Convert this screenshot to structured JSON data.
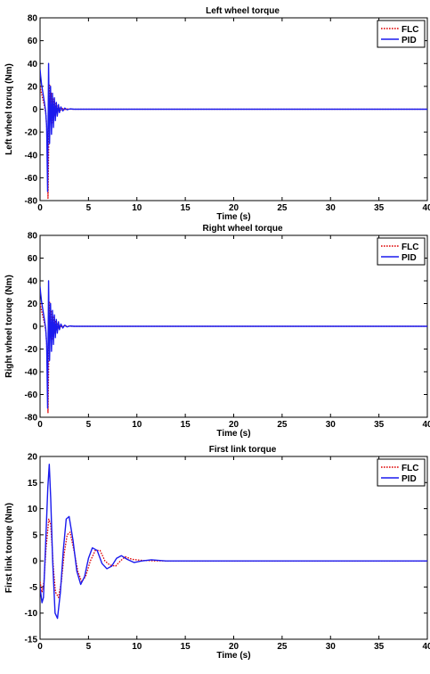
{
  "chart_data": [
    {
      "type": "line",
      "title": "Left wheel torque",
      "xlabel": "Time (s)",
      "ylabel": "Left wheel toruq (Nm)",
      "xlim": [
        0,
        40
      ],
      "ylim": [
        -80,
        80
      ],
      "xticks": [
        0,
        5,
        10,
        15,
        20,
        25,
        30,
        35,
        40
      ],
      "yticks": [
        -80,
        -60,
        -40,
        -20,
        0,
        20,
        40,
        60,
        80
      ],
      "xtick_labels": [
        "0",
        "5",
        "10",
        "15",
        "20",
        "25",
        "30",
        "35",
        "40"
      ],
      "ytick_labels": [
        "-80",
        "-60",
        "-40",
        "-20",
        "0",
        "20",
        "40",
        "60",
        "80"
      ],
      "grid": false,
      "legend_position": "top-right",
      "series": [
        {
          "name": "FLC",
          "color": "#dd0000",
          "style": "dotted",
          "x": [
            0,
            0.05,
            0.15,
            0.3,
            0.45,
            0.6,
            0.72,
            0.82,
            0.9,
            0.98,
            1.05,
            1.15,
            1.25,
            1.35,
            1.45,
            1.55,
            1.65,
            1.75,
            1.85,
            1.95,
            2.1,
            2.3,
            2.5,
            2.8,
            3.2,
            4,
            40
          ],
          "y": [
            20,
            18,
            14,
            8,
            3,
            -4,
            -22,
            -78,
            -30,
            22,
            -8,
            14,
            -12,
            9,
            -6,
            5,
            -3,
            3,
            -2,
            1.5,
            -1,
            0.6,
            -0.3,
            0.2,
            0,
            0,
            0
          ]
        },
        {
          "name": "PID",
          "color": "#1a1aee",
          "style": "solid",
          "x": [
            0,
            0.05,
            0.15,
            0.3,
            0.45,
            0.58,
            0.68,
            0.78,
            0.88,
            0.98,
            1.08,
            1.18,
            1.28,
            1.38,
            1.48,
            1.58,
            1.68,
            1.78,
            1.9,
            2.0,
            2.15,
            2.35,
            2.55,
            2.8,
            3.1,
            3.5,
            4,
            40
          ],
          "y": [
            35,
            30,
            22,
            14,
            6,
            -2,
            -15,
            -72,
            40,
            -30,
            20,
            -22,
            14,
            -16,
            10,
            -10,
            6,
            -6,
            4,
            -3,
            2,
            -1.5,
            1,
            -0.5,
            0.3,
            0,
            0,
            0
          ]
        }
      ]
    },
    {
      "type": "line",
      "title": "Right wheel torque",
      "xlabel": "Time (s)",
      "ylabel": "Right wheel toruqe (Nm)",
      "xlim": [
        0,
        40
      ],
      "ylim": [
        -80,
        80
      ],
      "xticks": [
        0,
        5,
        10,
        15,
        20,
        25,
        30,
        35,
        40
      ],
      "yticks": [
        -80,
        -60,
        -40,
        -20,
        0,
        20,
        40,
        60,
        80
      ],
      "xtick_labels": [
        "0",
        "5",
        "10",
        "15",
        "20",
        "25",
        "30",
        "35",
        "40"
      ],
      "ytick_labels": [
        "-80",
        "-60",
        "-40",
        "-20",
        "0",
        "20",
        "40",
        "60",
        "80"
      ],
      "grid": false,
      "legend_position": "top-right",
      "series": [
        {
          "name": "FLC",
          "color": "#dd0000",
          "style": "dotted",
          "x": [
            0,
            0.05,
            0.15,
            0.3,
            0.45,
            0.6,
            0.72,
            0.82,
            0.9,
            0.98,
            1.05,
            1.15,
            1.25,
            1.35,
            1.45,
            1.55,
            1.65,
            1.75,
            1.85,
            1.95,
            2.1,
            2.3,
            2.5,
            2.8,
            3.2,
            4,
            40
          ],
          "y": [
            20,
            18,
            14,
            8,
            3,
            -4,
            -22,
            -76,
            -30,
            22,
            -8,
            14,
            -12,
            9,
            -6,
            5,
            -3,
            3,
            -2,
            1.5,
            -1,
            0.6,
            -0.3,
            0.2,
            0,
            0,
            0
          ]
        },
        {
          "name": "PID",
          "color": "#1a1aee",
          "style": "solid",
          "x": [
            0,
            0.05,
            0.15,
            0.3,
            0.45,
            0.58,
            0.68,
            0.78,
            0.88,
            0.98,
            1.08,
            1.18,
            1.28,
            1.38,
            1.48,
            1.58,
            1.68,
            1.78,
            1.9,
            2.0,
            2.15,
            2.35,
            2.55,
            2.8,
            3.1,
            3.5,
            4,
            40
          ],
          "y": [
            35,
            30,
            22,
            14,
            6,
            -2,
            -15,
            -72,
            40,
            -30,
            20,
            -22,
            14,
            -16,
            10,
            -10,
            6,
            -6,
            4,
            -3,
            2,
            -1.5,
            1,
            -0.5,
            0.3,
            0,
            0,
            0
          ]
        }
      ]
    },
    {
      "type": "line",
      "title": "First link torque",
      "xlabel": "Time (s)",
      "ylabel": "First link toruqe (Nm)",
      "xlim": [
        0,
        40
      ],
      "ylim": [
        -15,
        20
      ],
      "xticks": [
        0,
        5,
        10,
        15,
        20,
        25,
        30,
        35,
        40
      ],
      "yticks": [
        -15,
        -10,
        -5,
        0,
        5,
        10,
        15,
        20
      ],
      "xtick_labels": [
        "0",
        "5",
        "10",
        "15",
        "20",
        "25",
        "30",
        "35",
        "40"
      ],
      "ytick_labels": [
        "-15",
        "-10",
        "-5",
        "0",
        "5",
        "10",
        "15",
        "20"
      ],
      "grid": false,
      "legend_position": "top-right",
      "series": [
        {
          "name": "FLC",
          "color": "#dd0000",
          "style": "dotted",
          "x": [
            0,
            0.2,
            0.4,
            0.6,
            0.9,
            1.1,
            1.4,
            1.6,
            1.9,
            2.2,
            2.5,
            2.8,
            3.1,
            3.5,
            3.9,
            4.3,
            4.7,
            5.2,
            5.7,
            6.2,
            6.7,
            7.2,
            7.8,
            8.3,
            8.8,
            9.5,
            10.5,
            12,
            14,
            40
          ],
          "y": [
            -4,
            -6,
            -4,
            2,
            8,
            7,
            -2,
            -6,
            -7,
            -4,
            1.5,
            5,
            5.5,
            2,
            -2,
            -4,
            -3,
            0,
            2,
            2,
            0,
            -0.8,
            -1,
            0,
            0.8,
            0.3,
            0.1,
            0,
            0,
            0
          ]
        },
        {
          "name": "PID",
          "color": "#1a1aee",
          "style": "solid",
          "x": [
            0,
            0.2,
            0.35,
            0.55,
            0.8,
            0.95,
            1.1,
            1.3,
            1.55,
            1.8,
            2.1,
            2.4,
            2.7,
            3.0,
            3.4,
            3.8,
            4.2,
            4.6,
            5.0,
            5.4,
            5.9,
            6.4,
            6.9,
            7.4,
            7.9,
            8.4,
            9.0,
            9.7,
            10.5,
            11.5,
            13,
            15,
            40
          ],
          "y": [
            -5,
            -8,
            -7,
            2,
            14,
            18.5,
            12,
            0,
            -10,
            -11,
            -6,
            2,
            8,
            8.5,
            4,
            -2,
            -4.5,
            -3,
            0.5,
            2.5,
            2,
            -0.5,
            -1.5,
            -1,
            0.5,
            1,
            0.3,
            -0.3,
            0,
            0.2,
            0,
            0,
            0
          ]
        }
      ]
    }
  ]
}
